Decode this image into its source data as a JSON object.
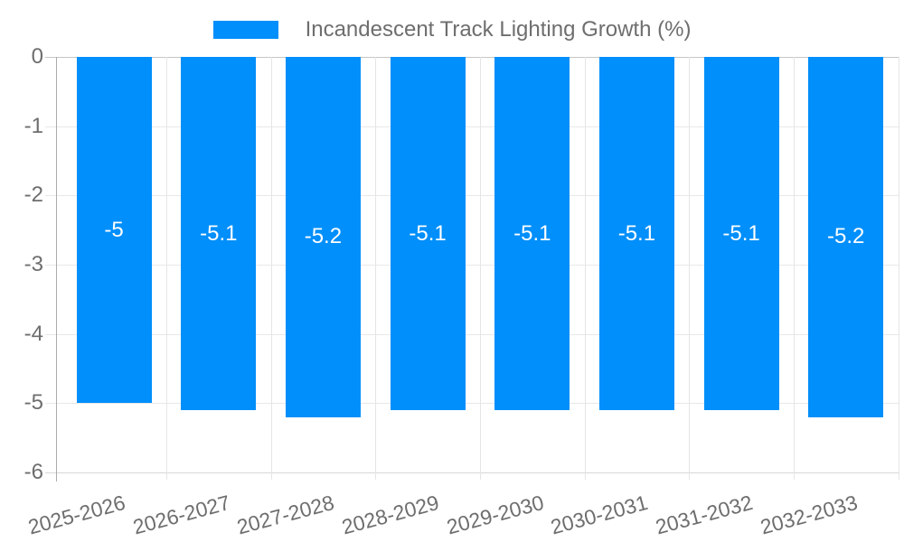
{
  "chart_data": {
    "type": "bar",
    "title": "",
    "legend_label": "Incandescent Track Lighting Growth (%)",
    "legend_position": "top",
    "categories": [
      "2025-2026",
      "2026-2027",
      "2027-2028",
      "2028-2029",
      "2029-2030",
      "2030-2031",
      "2031-2032",
      "2032-2033"
    ],
    "series": [
      {
        "name": "Incandescent Track Lighting Growth (%)",
        "values": [
          -5,
          -5.1,
          -5.2,
          -5.1,
          -5.1,
          -5.1,
          -5.1,
          -5.2
        ]
      }
    ],
    "data_labels": [
      "-5",
      "-5.1",
      "-5.2",
      "-5.1",
      "-5.1",
      "-5.1",
      "-5.1",
      "-5.2"
    ],
    "yticks": [
      0,
      -1,
      -2,
      -3,
      -4,
      -5,
      -6
    ],
    "ylim": [
      -6,
      0
    ],
    "xlabel": "",
    "ylabel": "",
    "grid": true,
    "bar_color": "#008FFB"
  },
  "colors": {
    "bar": "#008FFB",
    "value_label": "#ffffff",
    "tick_label": "#6E6E6E",
    "legend_text": "#6E6E6E",
    "grid_light": "#e8e8e8",
    "grid_vertical": "#e5e5e5",
    "zero_line": "#c6c6c6",
    "bottom_line": "#d8d8d8",
    "axis_line": "#ababab",
    "background": "#ffffff"
  }
}
